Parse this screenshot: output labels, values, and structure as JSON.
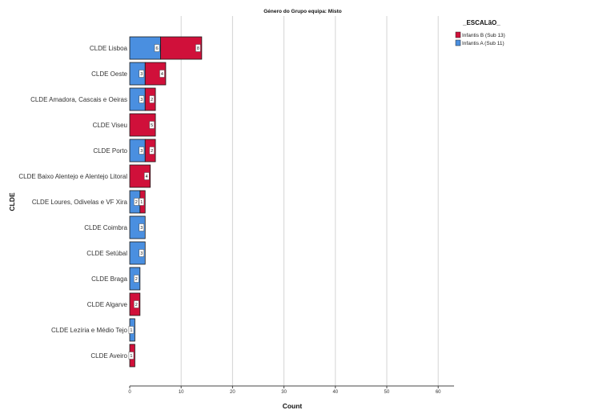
{
  "chart_data": {
    "type": "bar",
    "orientation": "horizontal",
    "stacked": true,
    "title": "Género do Grupo equipa: Misto",
    "xlabel": "Count",
    "ylabel": "CLDE",
    "xlim": [
      0,
      63
    ],
    "xticks": [
      0,
      10,
      20,
      30,
      40,
      50,
      60
    ],
    "grid": "vertical",
    "legend_title": "_ESCALãO_",
    "legend_position": "top-right",
    "categories": [
      "CLDE Lisboa",
      "CLDE Oeste",
      "CLDE Amadora, Cascais e Oeiras",
      "CLDE Viseu",
      "CLDE Porto",
      "CLDE Baixo Alentejo e Alentejo Litoral",
      "CLDE Loures, Odivelas e VF Xira",
      "CLDE Coimbra",
      "CLDE Setúbal",
      "CLDE Braga",
      "CLDE Algarve",
      "CLDE Lezíria e Médio Tejo",
      "CLDE Aveiro"
    ],
    "series": [
      {
        "name": "Infantis A (Sub 11)",
        "color": "#4a8fe0",
        "values": [
          6,
          3,
          3,
          0,
          3,
          0,
          2,
          3,
          3,
          2,
          0,
          1,
          0
        ]
      },
      {
        "name": "Infantis B (Sub 13)",
        "color": "#d0103a",
        "values": [
          8,
          4,
          2,
          5,
          2,
          4,
          1,
          0,
          0,
          0,
          2,
          0,
          1
        ]
      }
    ],
    "legend_order": [
      "Infantis B (Sub 13)",
      "Infantis A (Sub 11)"
    ]
  }
}
